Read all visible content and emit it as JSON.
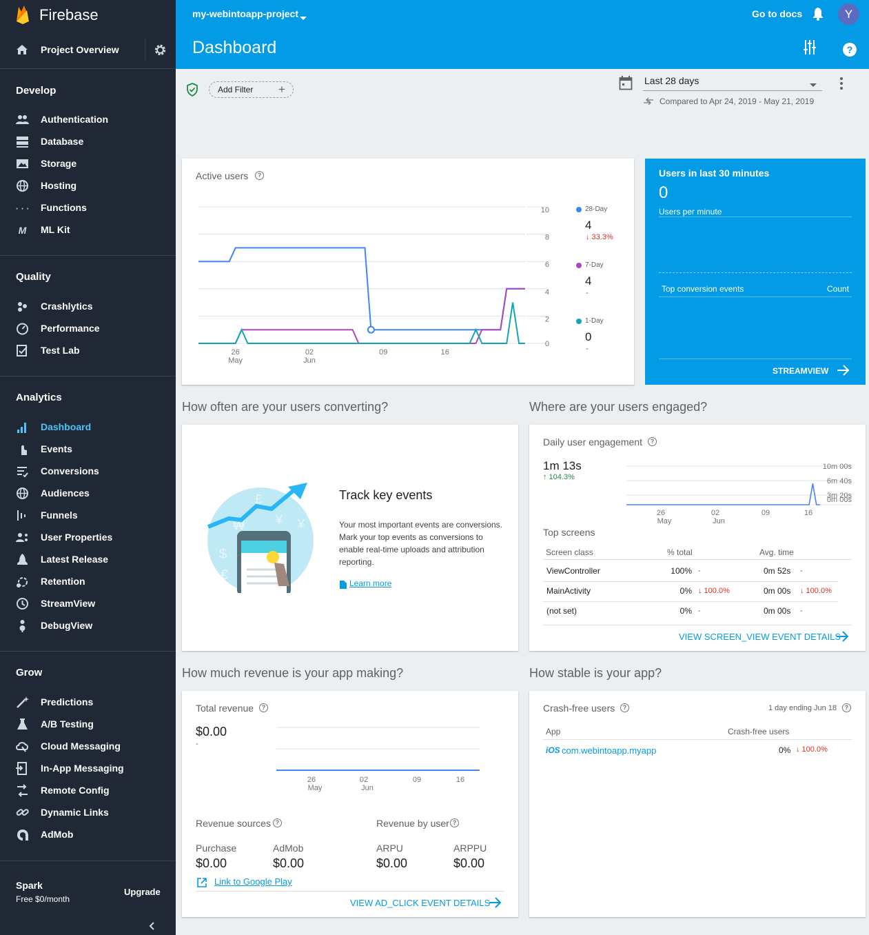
{
  "brand": {
    "name": "Firebase"
  },
  "overview": {
    "label": "Project Overview"
  },
  "sidebar": {
    "develop": {
      "title": "Develop",
      "items": [
        {
          "label": "Authentication",
          "icon": "people-icon"
        },
        {
          "label": "Database",
          "icon": "database-icon"
        },
        {
          "label": "Storage",
          "icon": "photo-icon"
        },
        {
          "label": "Hosting",
          "icon": "globe-icon"
        },
        {
          "label": "Functions",
          "icon": "functions-icon"
        },
        {
          "label": "ML Kit",
          "icon": "mlkit-icon"
        }
      ]
    },
    "quality": {
      "title": "Quality",
      "items": [
        {
          "label": "Crashlytics",
          "icon": "crashlytics-icon"
        },
        {
          "label": "Performance",
          "icon": "speedometer-icon"
        },
        {
          "label": "Test Lab",
          "icon": "checklist-icon"
        }
      ]
    },
    "analytics": {
      "title": "Analytics",
      "items": [
        {
          "label": "Dashboard",
          "icon": "bar-chart-icon",
          "active": true
        },
        {
          "label": "Events",
          "icon": "touch-icon"
        },
        {
          "label": "Conversions",
          "icon": "conversions-icon"
        },
        {
          "label": "Audiences",
          "icon": "globe-icon"
        },
        {
          "label": "Funnels",
          "icon": "funnel-icon"
        },
        {
          "label": "User Properties",
          "icon": "user-properties-icon"
        },
        {
          "label": "Latest Release",
          "icon": "release-icon"
        },
        {
          "label": "Retention",
          "icon": "retention-icon"
        },
        {
          "label": "StreamView",
          "icon": "clock-icon"
        },
        {
          "label": "DebugView",
          "icon": "debug-icon"
        }
      ]
    },
    "grow": {
      "title": "Grow",
      "items": [
        {
          "label": "Predictions",
          "icon": "wand-icon"
        },
        {
          "label": "A/B Testing",
          "icon": "flask-icon"
        },
        {
          "label": "Cloud Messaging",
          "icon": "cloud-messaging-icon"
        },
        {
          "label": "In-App Messaging",
          "icon": "in-app-messaging-icon"
        },
        {
          "label": "Remote Config",
          "icon": "remote-config-icon"
        },
        {
          "label": "Dynamic Links",
          "icon": "link-icon"
        },
        {
          "label": "AdMob",
          "icon": "admob-icon"
        }
      ]
    },
    "plan": {
      "name": "Spark",
      "price": "Free $0/month",
      "upgrade": "Upgrade"
    }
  },
  "topbar": {
    "project": "my-webintoapp-project",
    "docs": "Go to docs",
    "avatar": "Y",
    "title": "Dashboard"
  },
  "filters": {
    "add_filter": "Add Filter",
    "date_range": "Last 28 days",
    "compared": "Compared to Apr 24, 2019 - May 21, 2019"
  },
  "active_users": {
    "title": "Active users",
    "legend": [
      {
        "label": "28-Day",
        "value": "4",
        "change": "↓ 33.3%",
        "color": "#4285f4"
      },
      {
        "label": "7-Day",
        "value": "4",
        "change": "-",
        "color": "#ab47bc"
      },
      {
        "label": "1-Day",
        "value": "0",
        "change": "-",
        "color": "#12a4b8"
      }
    ],
    "chart_data": {
      "type": "line",
      "x_ticks": [
        {
          "top": "26",
          "bottom": "May"
        },
        {
          "top": "02",
          "bottom": "Jun"
        },
        {
          "top": "09",
          "bottom": ""
        },
        {
          "top": "16",
          "bottom": ""
        }
      ],
      "y_ticks": [
        "10",
        "8",
        "6",
        "4",
        "2",
        "0"
      ],
      "ylim": [
        0,
        10
      ],
      "series": [
        {
          "name": "28-Day",
          "color": "#4285f4",
          "values": [
            6,
            6,
            6,
            6,
            6,
            6,
            7,
            7,
            7,
            7,
            7,
            7,
            7,
            7,
            7,
            7,
            7,
            7,
            7,
            7,
            7,
            7,
            7,
            7,
            7,
            7,
            7,
            7,
            1,
            1,
            1,
            1,
            1,
            1,
            1,
            1,
            1,
            1,
            1,
            1,
            1,
            1,
            1,
            1,
            1,
            1,
            1,
            1,
            1,
            1,
            4,
            4,
            4,
            4
          ]
        },
        {
          "name": "7-Day",
          "color": "#ab47bc",
          "values": [
            0,
            0,
            0,
            0,
            0,
            0,
            0,
            1,
            1,
            1,
            1,
            1,
            1,
            1,
            1,
            1,
            1,
            1,
            1,
            1,
            1,
            1,
            1,
            1,
            1,
            1,
            0,
            0,
            0,
            0,
            0,
            0,
            0,
            0,
            0,
            0,
            0,
            0,
            0,
            0,
            0,
            0,
            0,
            0,
            0,
            0,
            1,
            1,
            1,
            1,
            4,
            4,
            4,
            4
          ]
        },
        {
          "name": "1-Day",
          "color": "#12a4b8",
          "values": [
            0,
            0,
            0,
            0,
            0,
            0,
            0,
            1,
            0,
            0,
            0,
            0,
            0,
            0,
            0,
            0,
            0,
            0,
            0,
            0,
            0,
            0,
            0,
            0,
            0,
            0,
            0,
            0,
            0,
            0,
            0,
            0,
            0,
            0,
            0,
            0,
            0,
            0,
            0,
            0,
            0,
            0,
            0,
            0,
            0,
            1,
            0,
            0,
            0,
            0,
            0,
            3,
            0,
            0
          ]
        }
      ]
    }
  },
  "realtime": {
    "title": "Users in last 30 minutes",
    "value": "0",
    "sub": "Users per minute",
    "events_label": "Top conversion events",
    "count_label": "Count",
    "cta": "STREAMVIEW"
  },
  "conversion": {
    "section": "How often are your users converting?",
    "title": "Track key events",
    "body": "Your most important events are conversions. Mark your top events as conversions to enable real-time uploads and attribution reporting.",
    "link": "Learn more"
  },
  "engagement": {
    "section": "Where are your users engaged?",
    "title": "Daily user engagement",
    "value": "1m 13s",
    "change": "↑ 104.3%",
    "chart_data": {
      "type": "line",
      "x_ticks": [
        {
          "top": "26",
          "bottom": "May"
        },
        {
          "top": "02",
          "bottom": "Jun"
        },
        {
          "top": "09",
          "bottom": ""
        },
        {
          "top": "16",
          "bottom": ""
        }
      ],
      "y_ticks": [
        "10m 00s",
        "6m 40s",
        "3m 20s",
        "0m 00s"
      ],
      "series": [
        {
          "name": "",
          "values": [
            0,
            0,
            0,
            0,
            0,
            0,
            0,
            0,
            0,
            0,
            0,
            0,
            0,
            0,
            0,
            0,
            0,
            0,
            0,
            0,
            0,
            0,
            0,
            0,
            0,
            0,
            0,
            0,
            0,
            0,
            0,
            0,
            0,
            0,
            0,
            0,
            0,
            0,
            0,
            0,
            0,
            0,
            0,
            0,
            0,
            0,
            0,
            0,
            0,
            0,
            0,
            5.5,
            0,
            0
          ]
        }
      ]
    },
    "top_screens": "Top screens",
    "columns": [
      "Screen class",
      "% total",
      "Avg. time"
    ],
    "rows": [
      {
        "name": "ViewController",
        "pct": "100%",
        "pct_change": "-",
        "time": "0m 52s",
        "time_change": "-"
      },
      {
        "name": "MainActivity",
        "pct": "0%",
        "pct_change": "↓ 100.0%",
        "time": "0m 00s",
        "time_change": "↓ 100.0%"
      },
      {
        "name": "(not set)",
        "pct": "0%",
        "pct_change": "-",
        "time": "0m 00s",
        "time_change": "-"
      }
    ],
    "cta": "VIEW SCREEN_VIEW EVENT DETAILS"
  },
  "revenue": {
    "section": "How much revenue is your app making?",
    "title": "Total revenue",
    "value": "$0.00",
    "change": "-",
    "chart_data": {
      "type": "line",
      "x_ticks": [
        {
          "top": "26",
          "bottom": "May"
        },
        {
          "top": "02",
          "bottom": "Jun"
        },
        {
          "top": "09",
          "bottom": ""
        },
        {
          "top": "16",
          "bottom": ""
        }
      ],
      "series": [
        {
          "name": "",
          "values": [
            0,
            0
          ]
        }
      ]
    },
    "sources_title": "Revenue sources",
    "by_user_title": "Revenue by user",
    "metrics": [
      {
        "label": "Purchase",
        "value": "$0.00"
      },
      {
        "label": "AdMob",
        "value": "$0.00"
      },
      {
        "label": "ARPU",
        "value": "$0.00"
      },
      {
        "label": "ARPPU",
        "value": "$0.00"
      }
    ],
    "play_link": "Link to Google Play",
    "cta": "VIEW AD_CLICK EVENT DETAILS"
  },
  "stability": {
    "section": "How stable is your app?",
    "title": "Crash-free users",
    "period": "1 day ending Jun 18",
    "columns": [
      "App",
      "Crash-free users"
    ],
    "rows": [
      {
        "platform": "iOS",
        "app": "com.webintoapp.myapp",
        "value": "0%",
        "change": "↓ 100.0%"
      }
    ]
  }
}
